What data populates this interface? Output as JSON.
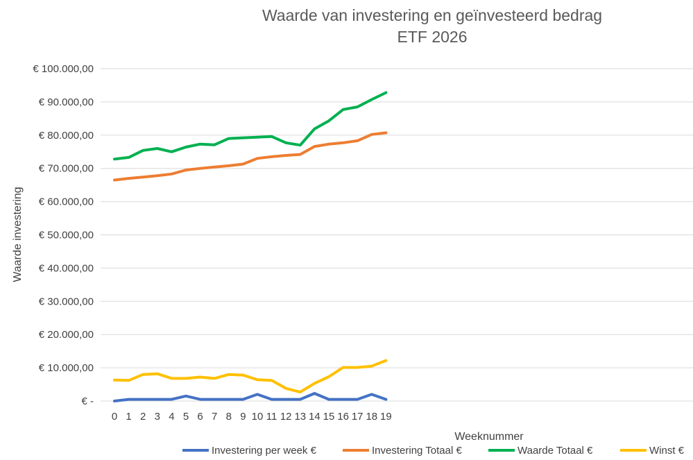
{
  "chart_data": {
    "type": "line",
    "title": "Waarde van investering en geïnvesteerd bedrag",
    "subtitle": "ETF 2026",
    "xlabel": "Weeknummer",
    "ylabel": "Waarde investering",
    "x": [
      0,
      1,
      2,
      3,
      4,
      5,
      6,
      7,
      8,
      9,
      10,
      11,
      12,
      13,
      14,
      15,
      16,
      17,
      18,
      19
    ],
    "x_tick_labels": [
      "0",
      "1",
      "2",
      "3",
      "4",
      "5",
      "6",
      "7",
      "8",
      "9",
      "10",
      "11",
      "12",
      "13",
      "14",
      "15",
      "16",
      "17",
      "18",
      "19"
    ],
    "x_range": [
      0,
      40
    ],
    "ylim": [
      0,
      100000
    ],
    "y_ticks": [
      0,
      10000,
      20000,
      30000,
      40000,
      50000,
      60000,
      70000,
      80000,
      90000,
      100000
    ],
    "y_tick_labels": [
      "€ -",
      "€ 10.000,00",
      "€ 20.000,00",
      "€ 30.000,00",
      "€ 40.000,00",
      "€ 50.000,00",
      "€ 60.000,00",
      "€ 70.000,00",
      "€ 80.000,00",
      "€ 90.000,00",
      "€ 100.000,00"
    ],
    "grid": true,
    "legend_position": "bottom",
    "series": [
      {
        "name": "Investering per week €",
        "color": "#4472c4",
        "values": [
          0,
          500,
          500,
          500,
          500,
          1500,
          500,
          500,
          500,
          500,
          2000,
          500,
          500,
          500,
          2300,
          500,
          500,
          500,
          2000,
          500
        ]
      },
      {
        "name": "Investering Totaal €",
        "color": "#ed7d31",
        "values": [
          66500,
          67000,
          67400,
          67800,
          68300,
          69500,
          70000,
          70400,
          70800,
          71300,
          73000,
          73500,
          73900,
          74200,
          76600,
          77300,
          77700,
          78300,
          80200,
          80700
        ]
      },
      {
        "name": "Waarde Totaal €",
        "color": "#00b050",
        "values": [
          72800,
          73300,
          75400,
          76000,
          75000,
          76400,
          77300,
          77100,
          79000,
          79200,
          79400,
          79600,
          77700,
          77000,
          81900,
          84300,
          87700,
          88500,
          90700,
          92800
        ]
      },
      {
        "name": "Winst €",
        "color": "#ffc000",
        "values": [
          6300,
          6200,
          8000,
          8200,
          6800,
          6800,
          7200,
          6800,
          8000,
          7800,
          6400,
          6200,
          3800,
          2700,
          5300,
          7300,
          10100,
          10100,
          10500,
          12200
        ]
      }
    ]
  }
}
